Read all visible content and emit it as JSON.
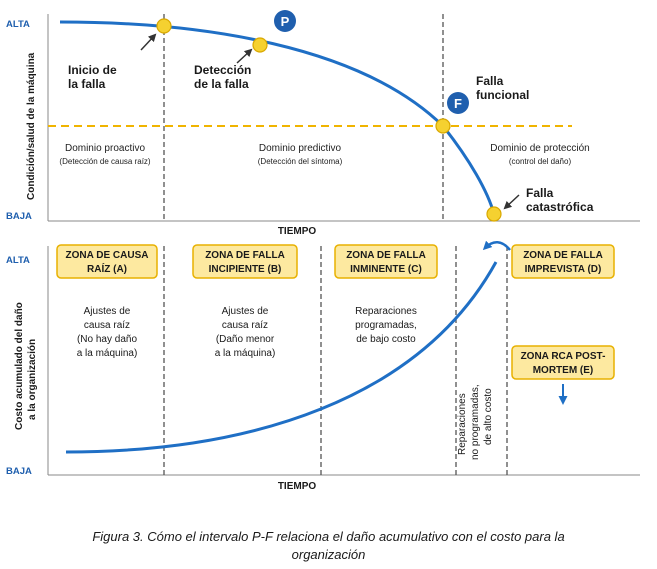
{
  "top_panel": {
    "level_high": "ALTA",
    "level_low": "BAJA",
    "y_axis_title": "Condición/salud de la máquina",
    "x_axis_title": "TIEMPO",
    "event_failure_start": [
      "Inicio de",
      "la falla"
    ],
    "event_detection": [
      "Detección",
      "de la falla"
    ],
    "event_functional_failure": [
      "Falla",
      "funcional"
    ],
    "event_catastrophic": [
      "Falla",
      "catastrófica"
    ],
    "badge_p": "P",
    "badge_f": "F",
    "domains": [
      {
        "title": "Dominio proactivo",
        "subtitle": "(Detección de causa raíz)"
      },
      {
        "title": "Dominio predictivo",
        "subtitle": "(Detección del síntoma)"
      },
      {
        "title": "Dominio de protección",
        "subtitle": "(control del daño)"
      }
    ]
  },
  "bottom_panel": {
    "level_high": "ALTA",
    "level_low": "BAJA",
    "y_axis_title": [
      "Costo acumulado del daño",
      "a la organización"
    ],
    "x_axis_title": "TIEMPO",
    "zones": [
      {
        "lines": [
          "ZONA DE CAUSA",
          "RAÍZ (A)"
        ]
      },
      {
        "lines": [
          "ZONA DE FALLA",
          "INCIPIENTE (B)"
        ]
      },
      {
        "lines": [
          "ZONA DE FALLA",
          "INMINENTE (C)"
        ]
      },
      {
        "lines": [
          "ZONA DE FALLA",
          "IMPREVISTA (D)"
        ]
      }
    ],
    "rca_zone": [
      "ZONA RCA POST-",
      "MORTEM (E)"
    ],
    "descriptions": [
      [
        "Ajustes de",
        "causa raíz",
        "(No hay daño",
        "a la máquina)"
      ],
      [
        "Ajustes de",
        "causa raíz",
        "(Daño menor",
        "a la máquina)"
      ],
      [
        "Reparaciones",
        "programadas,",
        "de bajo costo"
      ]
    ],
    "vertical_note": [
      "Reparaciones",
      "no programadas,",
      "de alto costo"
    ]
  },
  "caption": [
    "Figura 3. Cómo el intervalo P-F relaciona el daño acumulativo con el costo para la",
    "organización"
  ],
  "colors": {
    "curve": "#1f6fc5",
    "dashed_threshold": "#f0b400",
    "badge": "#1f5fae",
    "marker": "#f5d130",
    "zone_fill": "#fde9a0",
    "zone_border": "#e8b100"
  }
}
